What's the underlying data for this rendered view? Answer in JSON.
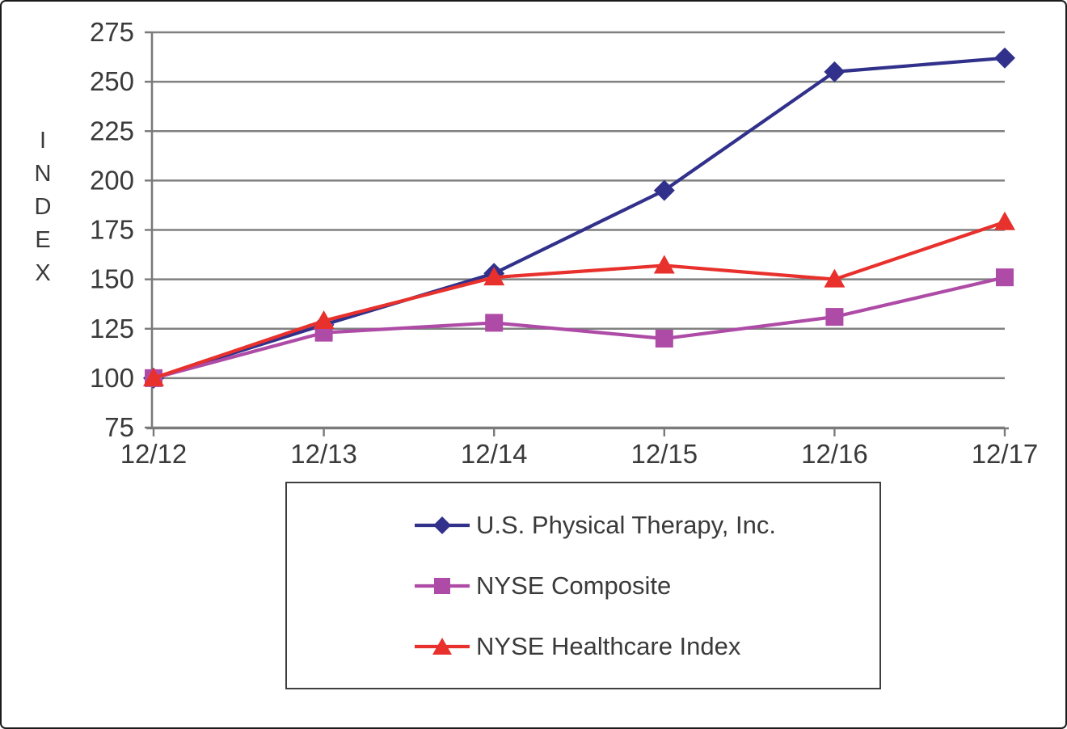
{
  "chart_data": {
    "type": "line",
    "title": "",
    "x_categories": [
      "12/12",
      "12/13",
      "12/14",
      "12/15",
      "12/16",
      "12/17"
    ],
    "xlabel": "",
    "ylabel": "INDEX",
    "ylim": [
      75,
      275
    ],
    "ytick_step": 25,
    "yticks": [
      275,
      250,
      225,
      200,
      175,
      150,
      125,
      100,
      75
    ],
    "grid": "horizontal",
    "legend_position": "below-plot-boxed",
    "series": [
      {
        "name": "U.S. Physical Therapy, Inc.",
        "marker": "diamond",
        "color": "#31318C",
        "values": [
          100,
          127,
          153,
          195,
          255,
          262
        ]
      },
      {
        "name": "NYSE Composite",
        "marker": "square",
        "color": "#AE4BA6",
        "values": [
          100,
          123,
          128,
          120,
          131,
          151
        ]
      },
      {
        "name": "NYSE Healthcare Index",
        "marker": "triangle",
        "color": "#E8312C",
        "values": [
          100,
          129,
          151,
          157,
          150,
          179
        ]
      }
    ]
  },
  "colors": {
    "grid": "#808080",
    "axis": "#7a7a7a",
    "tick_text": "#3a3a3a",
    "background": "#ffffff",
    "legend_border": "#3f3f3f"
  }
}
